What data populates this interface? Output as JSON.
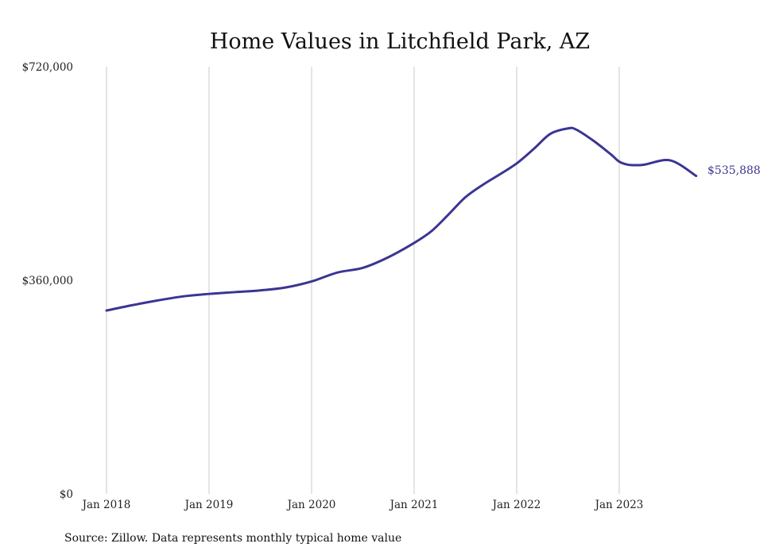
{
  "chart_data": {
    "type": "line",
    "title": "Home Values in Litchfield Park, AZ",
    "xlabel": "",
    "ylabel": "",
    "x_tick_labels": [
      "Jan 2018",
      "Jan 2019",
      "Jan 2020",
      "Jan 2021",
      "Jan 2022",
      "Jan 2023"
    ],
    "x_tick_values": [
      2018,
      2019,
      2020,
      2021,
      2022,
      2023
    ],
    "y_tick_labels": [
      "$720,000",
      "$360,000",
      "$0"
    ],
    "y_tick_values": [
      720000,
      360000,
      0
    ],
    "xlim": [
      2018,
      2023.75
    ],
    "ylim": [
      0,
      720000
    ],
    "grid": "vertical",
    "legend": "none",
    "color": "#3a3593",
    "end_label": "$535,888",
    "series": [
      {
        "x": [
          2018.0,
          2018.25,
          2018.5,
          2018.75,
          2019.0,
          2019.25,
          2019.5,
          2019.75,
          2020.0,
          2020.25,
          2020.5,
          2020.75,
          2021.0,
          2021.17,
          2021.33,
          2021.5,
          2021.67,
          2021.83,
          2022.0,
          2022.17,
          2022.33,
          2022.5,
          2022.58,
          2022.75,
          2022.92,
          2023.0,
          2023.08,
          2023.17,
          2023.25,
          2023.5,
          2023.75
        ],
        "y": [
          309000,
          318000,
          326000,
          333000,
          337000,
          340000,
          343000,
          348000,
          358000,
          373000,
          381000,
          399000,
          423000,
          443000,
          470000,
          500000,
          521000,
          538000,
          557000,
          582000,
          607000,
          616000,
          614000,
          595000,
          572000,
          560000,
          555000,
          554000,
          555000,
          562000,
          535888
        ]
      }
    ],
    "source": "Source: Zillow. Data represents monthly typical home value"
  }
}
